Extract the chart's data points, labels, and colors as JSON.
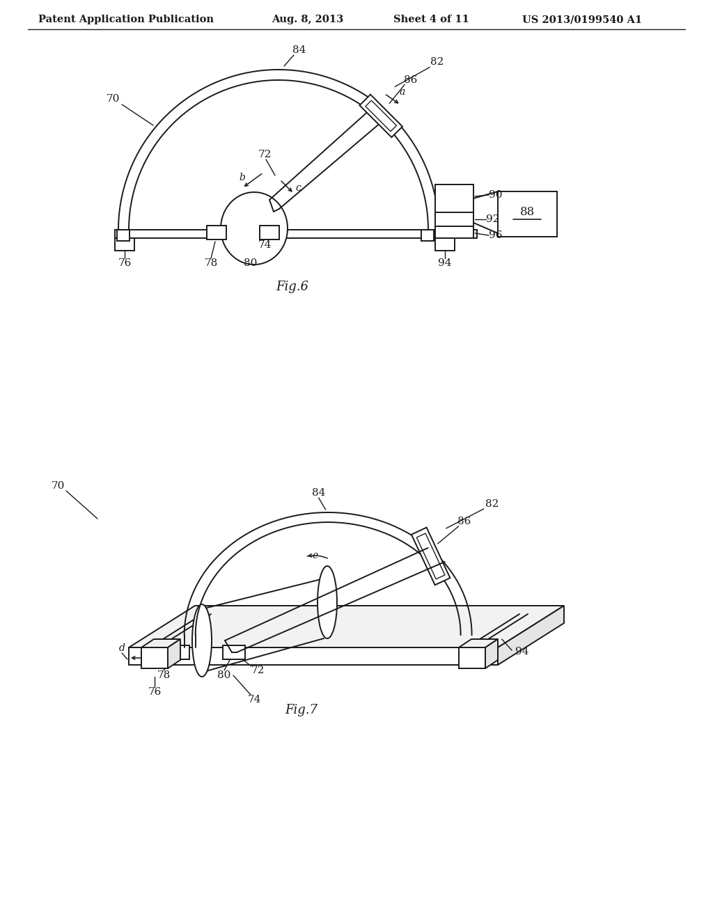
{
  "bg_color": "#ffffff",
  "line_color": "#1a1a1a",
  "header_text": "Patent Application Publication",
  "header_date": "Aug. 8, 2013",
  "header_sheet": "Sheet 4 of 11",
  "header_patent": "US 2013/0199540 A1",
  "fig6_label": "Fig.6",
  "fig7_label": "Fig.7"
}
